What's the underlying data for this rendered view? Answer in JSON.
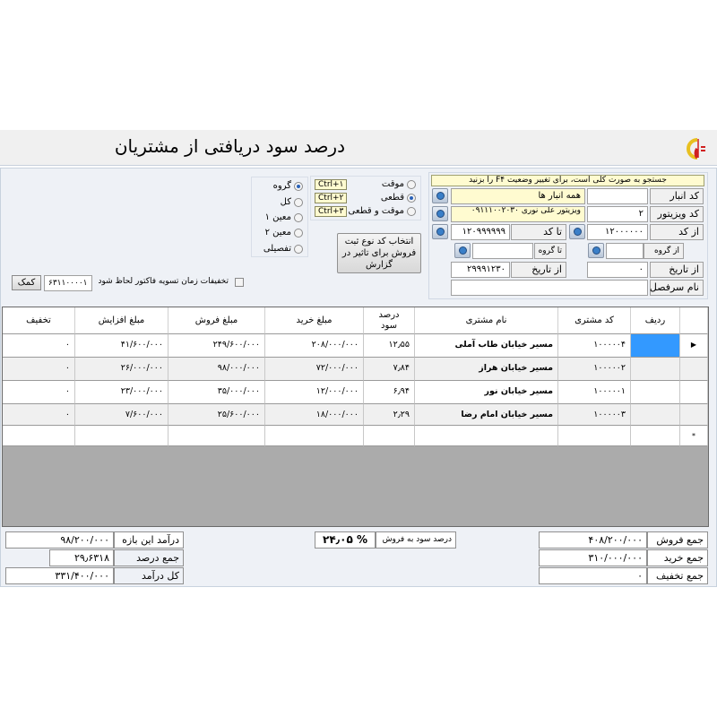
{
  "header": {
    "title": "درصد سود دریافتی از مشتریان",
    "logo": "company-logo"
  },
  "filters": {
    "hint": "جستجو به صورت کلی است، برای تغییر وضعیت F۴ را بزنید",
    "warehouse_code_label": "کد انبار",
    "warehouse_code": "",
    "warehouse_name": "همه انبار ها",
    "visitor_code_label": "کد ویزیتور",
    "visitor_code": "۲",
    "visitor_name": "ویزیتور علی نوری ۰۹۱۱۱۰۰۲۰۳۰",
    "from_code_label": "از کد",
    "from_code": "۱۲۰۰۰۰۰۰",
    "to_code_label": "تا کد",
    "to_code": "۱۲۰۹۹۹۹۹۹",
    "from_group_label": "از گروه",
    "from_group": "",
    "to_group_label": "تا گروه",
    "to_group": "",
    "from_date_label": "از تاریخ",
    "from_date": "۰",
    "to_date_label": "از تاریخ",
    "to_date": "۲۹۹۹۱۲۳۰",
    "account_name_label": "نام سرفصل",
    "account_name": ""
  },
  "options": {
    "doc_type": [
      {
        "label": "موقت",
        "selected": false,
        "shortcut": "Ctrl+۱"
      },
      {
        "label": "قطعی",
        "selected": true,
        "shortcut": "Ctrl+۲"
      },
      {
        "label": "موقت و قطعی",
        "selected": false,
        "shortcut": "Ctrl+۳"
      }
    ],
    "level": [
      {
        "label": "گروه",
        "selected": true
      },
      {
        "label": "کل",
        "selected": false
      },
      {
        "label": "معین ۱",
        "selected": false
      },
      {
        "label": "معین ۲",
        "selected": false
      },
      {
        "label": "تفصیلی",
        "selected": false
      }
    ],
    "select_sale_type_button": "انتخاب کد نوع ثبت فروش برای تاثیر در گزارش",
    "discount_checkbox": "تخفیفات زمان تسویه فاکتور لحاظ شود",
    "discount_checked": false,
    "help_code": "۶۳۱۱۰۰۰۰۱",
    "help_button": "کمک"
  },
  "table": {
    "columns": [
      "ردیف",
      "کد مشتری",
      "نام مشتری",
      "درصد سود",
      "مبلغ خرید",
      "مبلغ فروش",
      "مبلغ افزایش",
      "تخفیف"
    ],
    "rows": [
      {
        "row": "",
        "code": "۱۰۰۰۰۰۴",
        "name": "مسیر خیابان طاب آملی",
        "pct": "۱۲٫۵۵",
        "buy": "۲۰۸/۰۰۰/۰۰۰",
        "sell": "۲۴۹/۶۰۰/۰۰۰",
        "inc": "۴۱/۶۰۰/۰۰۰",
        "disc": "۰"
      },
      {
        "row": "",
        "code": "۱۰۰۰۰۰۲",
        "name": "مسیر خیابان هراز",
        "pct": "۷٫۸۴",
        "buy": "۷۲/۰۰۰/۰۰۰",
        "sell": "۹۸/۰۰۰/۰۰۰",
        "inc": "۲۶/۰۰۰/۰۰۰",
        "disc": "۰"
      },
      {
        "row": "",
        "code": "۱۰۰۰۰۰۱",
        "name": "مسیر خیابان نور",
        "pct": "۶٫۹۴",
        "buy": "۱۲/۰۰۰/۰۰۰",
        "sell": "۳۵/۰۰۰/۰۰۰",
        "inc": "۲۳/۰۰۰/۰۰۰",
        "disc": "۰"
      },
      {
        "row": "",
        "code": "۱۰۰۰۰۰۳",
        "name": "مسیر خیابان امام رضا",
        "pct": "۲٫۲۹",
        "buy": "۱۸/۰۰۰/۰۰۰",
        "sell": "۲۵/۶۰۰/۰۰۰",
        "inc": "۷/۶۰۰/۰۰۰",
        "disc": "۰"
      }
    ],
    "new_row_marker": "*",
    "current_row_marker": "▶"
  },
  "totals": {
    "total_sales_label": "جمع فروش",
    "total_sales": "۴۰۸/۲۰۰/۰۰۰",
    "total_purchase_label": "جمع خرید",
    "total_purchase": "۳۱۰/۰۰۰/۰۰۰",
    "total_discount_label": "جمع تخفیف",
    "total_discount": "۰",
    "profit_pct_label": "درصد سود به فروش",
    "profit_pct": "% ۲۴٫۰۵",
    "period_income_label": "درآمد این بازه",
    "period_income": "۹۸/۲۰۰/۰۰۰",
    "pct_sum_label": "جمع درصد",
    "pct_sum": "۲۹٫۶۳۱۸",
    "total_income_label": "کل درآمد",
    "total_income": "۳۳۱/۴۰۰/۰۰۰"
  }
}
